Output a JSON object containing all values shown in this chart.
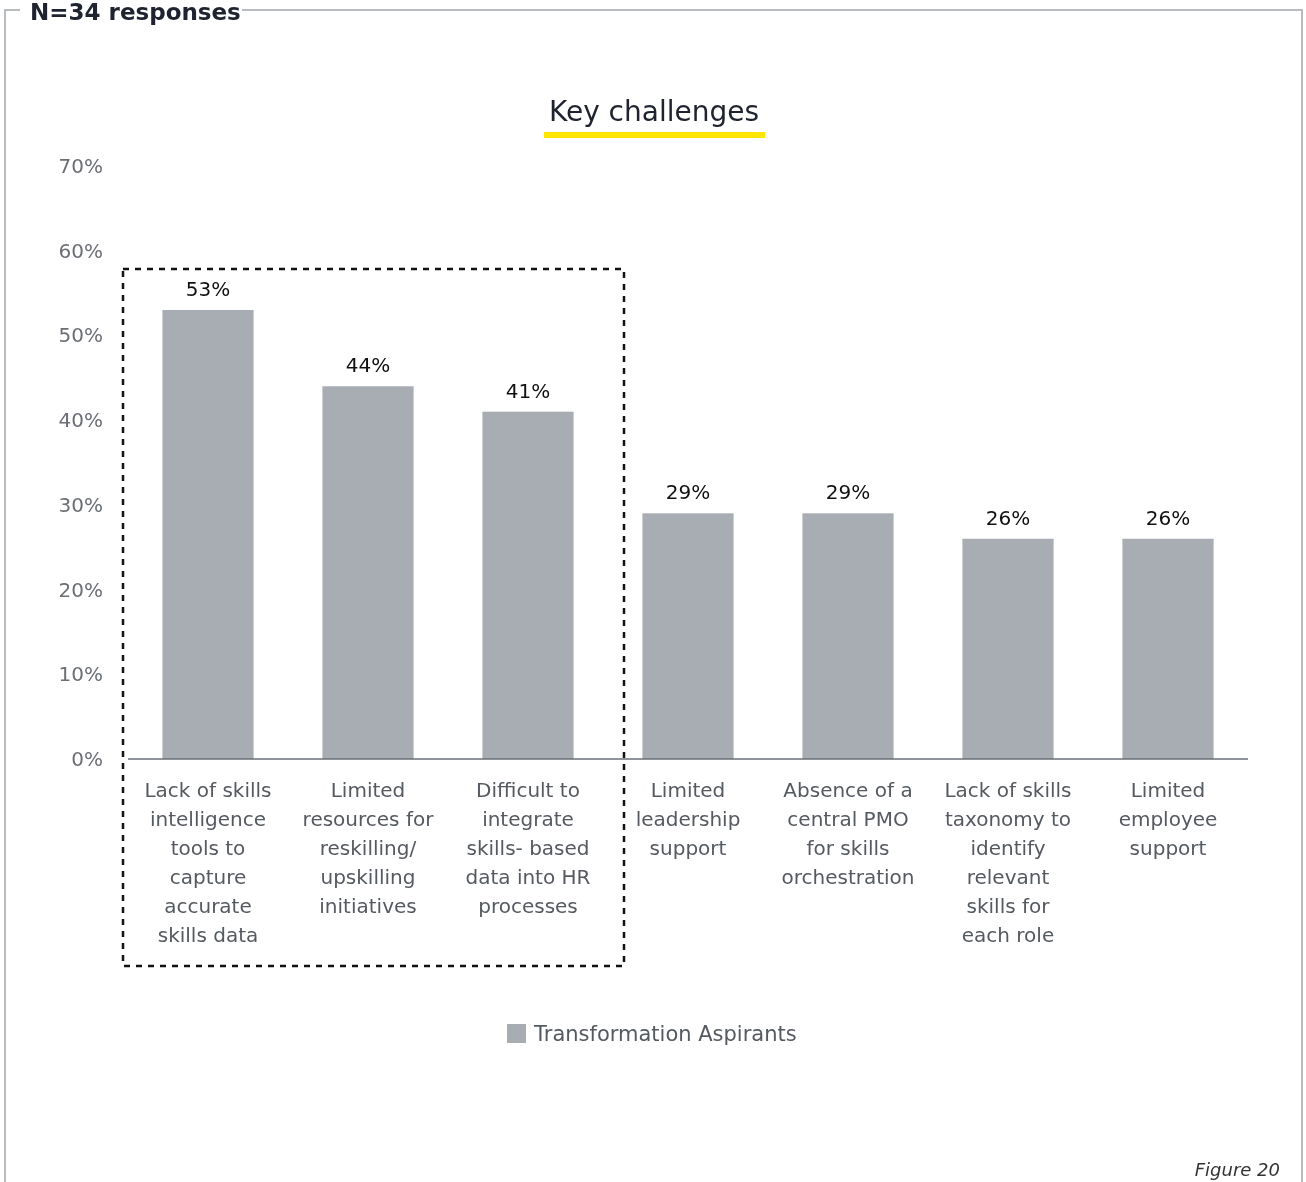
{
  "chart_data": {
    "type": "bar",
    "title": "Key challenges",
    "subtitle": "N=34 responses",
    "categories": [
      "Lack of skills intelligence tools to capture accurate skills data",
      "Limited resources for reskilling/ upskilling initiatives",
      "Difficult to integrate skills- based data into HR processes",
      "Limited leadership support",
      "Absence of a central PMO for skills orchestration",
      "Lack of skills taxonomy to identify relevant skills for each role",
      "Limited employee support"
    ],
    "series": [
      {
        "name": "Transformation Aspirants",
        "color": "#a7adb2",
        "values": [
          53,
          44,
          41,
          29,
          29,
          26,
          26
        ]
      }
    ],
    "ylim": [
      0,
      70
    ],
    "yticks": [
      {
        "value": 0,
        "label": "0%"
      },
      {
        "value": 10,
        "label": "10%"
      },
      {
        "value": 20,
        "label": "20%"
      },
      {
        "value": 30,
        "label": "30%"
      },
      {
        "value": 40,
        "label": "40%"
      },
      {
        "value": 50,
        "label": "50%"
      },
      {
        "value": 60,
        "label": "60%"
      },
      {
        "value": 70,
        "label": "70%"
      }
    ],
    "value_labels": [
      "53%",
      "44%",
      "41%",
      "29%",
      "29%",
      "26%",
      "26%"
    ],
    "grid": false,
    "legend": "bottom",
    "annotations": [
      "Figure 20"
    ]
  }
}
